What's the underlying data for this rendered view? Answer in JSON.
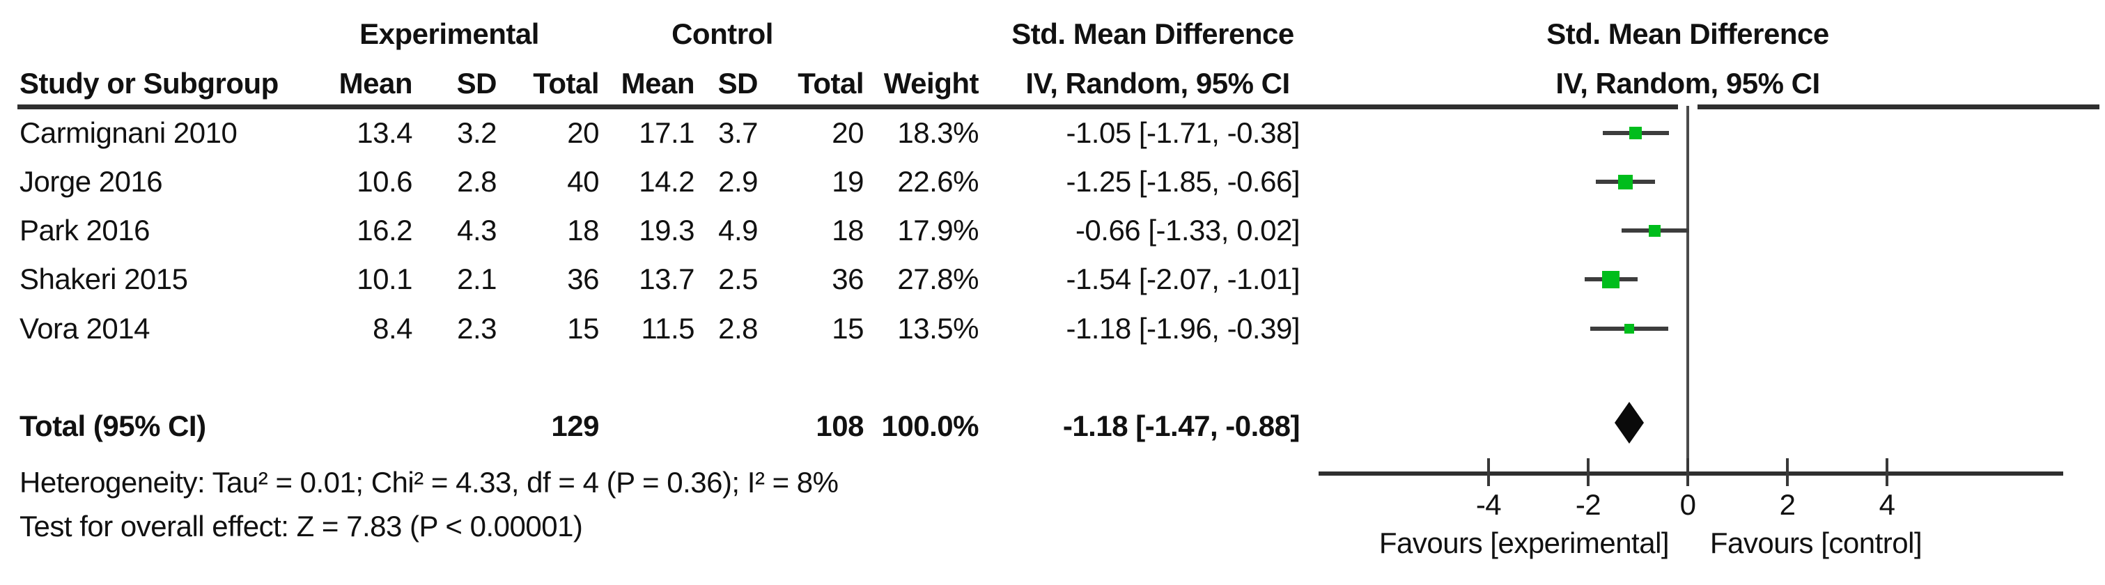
{
  "figure": {
    "background": "#ffffff",
    "text_color": "#111111",
    "rule_color": "#2f2f2f",
    "whisker_color": "#3d3d3d",
    "marker_color": "#00bd1c",
    "diamond_color": "#0a0a0a"
  },
  "table": {
    "group_headers": [
      "Experimental",
      "Control",
      "Std. Mean Difference"
    ],
    "subheaders": [
      "Study or Subgroup",
      "Mean",
      "SD",
      "Total",
      "Mean",
      "SD",
      "Total",
      "Weight",
      "IV, Random, 95% CI"
    ]
  },
  "plot": {
    "header_line1": "Std. Mean Difference",
    "header_line2": "IV, Random, 95% CI",
    "favours_left": "Favours [experimental]",
    "favours_right": "Favours [control]"
  },
  "chart_data": {
    "type": "forest",
    "effect_measure": "Std. Mean Difference",
    "method": "IV, Random, 95% CI",
    "axis_ticks": [
      -4,
      -2,
      0,
      2,
      4
    ],
    "xlim": [
      -4,
      4
    ],
    "studies": [
      {
        "name": "Carmignani 2010",
        "exp_mean": "13.4",
        "exp_sd": "3.2",
        "exp_total": "20",
        "ctrl_mean": "17.1",
        "ctrl_sd": "3.7",
        "ctrl_total": "20",
        "weight": "18.3%",
        "weight_pct": 18.3,
        "ci_text": "-1.05 [-1.71, -0.38]",
        "est": -1.05,
        "lo": -1.71,
        "hi": -0.38
      },
      {
        "name": "Jorge 2016",
        "exp_mean": "10.6",
        "exp_sd": "2.8",
        "exp_total": "40",
        "ctrl_mean": "14.2",
        "ctrl_sd": "2.9",
        "ctrl_total": "19",
        "weight": "22.6%",
        "weight_pct": 22.6,
        "ci_text": "-1.25 [-1.85, -0.66]",
        "est": -1.25,
        "lo": -1.85,
        "hi": -0.66
      },
      {
        "name": "Park 2016",
        "exp_mean": "16.2",
        "exp_sd": "4.3",
        "exp_total": "18",
        "ctrl_mean": "19.3",
        "ctrl_sd": "4.9",
        "ctrl_total": "18",
        "weight": "17.9%",
        "weight_pct": 17.9,
        "ci_text": "-0.66 [-1.33, 0.02]",
        "est": -0.66,
        "lo": -1.33,
        "hi": 0.02
      },
      {
        "name": "Shakeri 2015",
        "exp_mean": "10.1",
        "exp_sd": "2.1",
        "exp_total": "36",
        "ctrl_mean": "13.7",
        "ctrl_sd": "2.5",
        "ctrl_total": "36",
        "weight": "27.8%",
        "weight_pct": 27.8,
        "ci_text": "-1.54 [-2.07, -1.01]",
        "est": -1.54,
        "lo": -2.07,
        "hi": -1.01
      },
      {
        "name": "Vora 2014",
        "exp_mean": "8.4",
        "exp_sd": "2.3",
        "exp_total": "15",
        "ctrl_mean": "11.5",
        "ctrl_sd": "2.8",
        "ctrl_total": "15",
        "weight": "13.5%",
        "weight_pct": 13.5,
        "ci_text": "-1.18 [-1.96, -0.39]",
        "est": -1.18,
        "lo": -1.96,
        "hi": -0.39
      }
    ],
    "total": {
      "label": "Total (95% CI)",
      "exp_total": "129",
      "ctrl_total": "108",
      "weight": "100.0%",
      "ci_text": "-1.18 [-1.47, -0.88]",
      "est": -1.18,
      "lo": -1.47,
      "hi": -0.88
    },
    "footnotes": [
      "Heterogeneity: Tau² = 0.01; Chi² = 4.33, df = 4 (P = 0.36); I² = 8%",
      "Test for overall effect: Z = 7.83 (P < 0.00001)"
    ],
    "favours": [
      "Favours [experimental]",
      "Favours [control]"
    ]
  }
}
